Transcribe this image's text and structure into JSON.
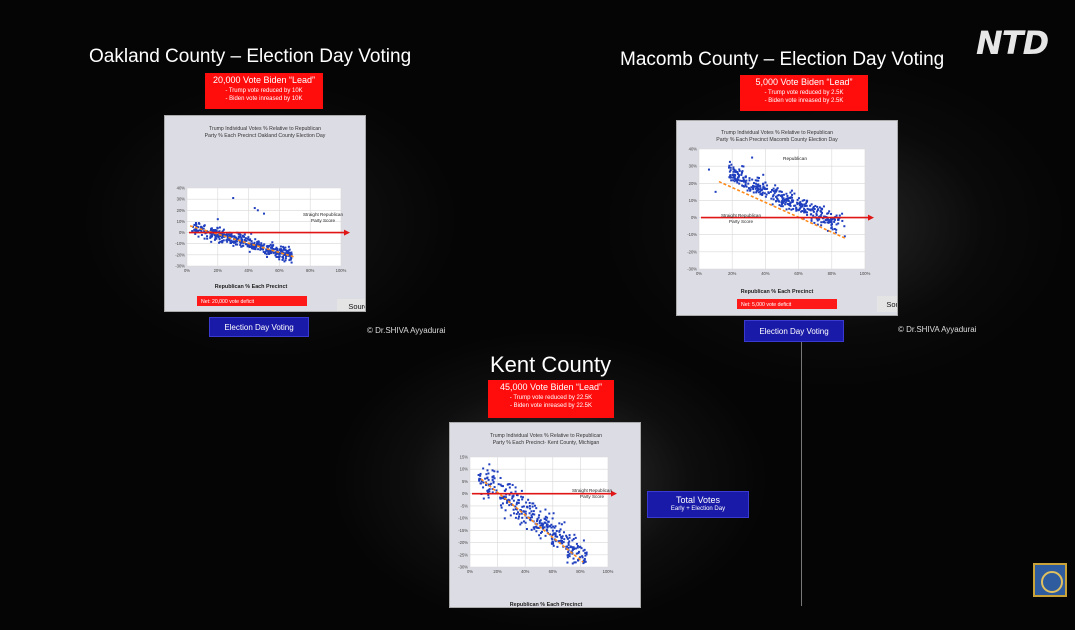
{
  "channel_logo": "NTD",
  "colors": {
    "background": "#050505",
    "red_box": "#ff0d0d",
    "blue_button": "#1a1aa8",
    "point": "#1f3fbf",
    "trend": "#ff8a1a",
    "baseline": "#e01515"
  },
  "charts": [
    {
      "heading": "Oakland County – Election Day Voting",
      "box": {
        "lead": "20,000 Vote Biden “Lead”",
        "line1": "-  Trump vote reduced by 10K",
        "line2": "-  Biden vote inreased by 10K"
      },
      "inner_title": [
        "Trump Individual Votes % Relative to Republican",
        "Party % Each Precinct Oakland County Election Day"
      ],
      "baseline_label": [
        "Straight Republican",
        "Party Score"
      ],
      "net": "Net:    20,000 vote deficit",
      "source": "Source: Phil Evans",
      "button": "Election Day Voting",
      "copyright": "© Dr.SHIVA Ayyadurai"
    },
    {
      "heading": "Macomb County – Election Day Voting",
      "box": {
        "lead": "5,000 Vote Biden “Lead”",
        "line1": "-  Trump vote reduced by 2.5K",
        "line2": "-  Biden vote inreased by 2.5K"
      },
      "inner_title": [
        "Trump Individual Votes % Relative to Republican",
        "Party % Each Precinct Macomb County Election Day"
      ],
      "baseline_label": [
        "Straight Republican",
        "Party Score"
      ],
      "cluster_label": "Republican",
      "net": "Net:    5,000 vote deficit",
      "source": "Source: Phil Evans",
      "button": "Election Day Voting",
      "copyright": "© Dr.SHIVA Ayyadurai"
    },
    {
      "heading": "Kent County",
      "box": {
        "lead": "45,000 Vote Biden “Lead”",
        "line1": "-  Trump vote reduced by 22.5K",
        "line2": "-  Biden vote inreased by 22.5K"
      },
      "inner_title": [
        "Trump Individual Votes % Relative to Republican",
        "Party % Each Precinct- Kent County, Michigan"
      ],
      "baseline_label": [
        "Straight Republican",
        "Party Score"
      ],
      "button_line1": "Total Votes",
      "button_line2": "Early + Election Day"
    }
  ],
  "chart_data": [
    {
      "type": "scatter",
      "title": "Trump Individual Votes % Relative to Republican Party % Each Precinct Oakland County Election Day",
      "xlabel": "Republican % Each Precinct",
      "ylabel": "",
      "xlim": [
        0,
        100
      ],
      "ylim": [
        -30,
        40
      ],
      "xticks": [
        0,
        20,
        40,
        60,
        80,
        100
      ],
      "xtick_labels": [
        "0%",
        "20%",
        "40%",
        "60%",
        "80%",
        "100%"
      ],
      "yticks": [
        40,
        30,
        20,
        10,
        0,
        -10,
        -20,
        -30
      ],
      "ytick_labels": [
        "40%",
        "30%",
        "20%",
        "10%",
        "0%",
        "-10%",
        "-20%",
        "-30%"
      ],
      "trend": {
        "x": [
          2,
          70
        ],
        "y": [
          6,
          -22
        ]
      },
      "baseline": 0,
      "gen": {
        "seed": 11,
        "n": 420,
        "x0": 3,
        "x1": 68,
        "y0": 5,
        "slope": -0.4,
        "sd": 4.5
      },
      "outliers": [
        [
          30,
          31
        ],
        [
          44,
          22
        ],
        [
          46,
          20
        ],
        [
          50,
          17
        ],
        [
          20,
          12
        ]
      ]
    },
    {
      "type": "scatter",
      "title": "Trump Individual Votes % Relative to Republican Party % Each Precinct Macomb County Election Day",
      "xlabel": "Republican % Each Precinct",
      "ylabel": "",
      "xlim": [
        0,
        100
      ],
      "ylim": [
        -30,
        40
      ],
      "xticks": [
        0,
        20,
        40,
        60,
        80,
        100
      ],
      "xtick_labels": [
        "0%",
        "20%",
        "40%",
        "60%",
        "80%",
        "100%"
      ],
      "yticks": [
        40,
        30,
        20,
        10,
        0,
        -10,
        -20,
        -30
      ],
      "ytick_labels": [
        "40%",
        "30%",
        "20%",
        "10%",
        "0%",
        "-10%",
        "-20%",
        "-30%"
      ],
      "trend": {
        "x": [
          12,
          88
        ],
        "y": [
          21,
          -12
        ]
      },
      "baseline": 0,
      "gen": {
        "seed": 23,
        "n": 380,
        "x0": 18,
        "x1": 88,
        "y0": 26,
        "slope": -0.45,
        "sd": 4
      },
      "outliers": [
        [
          6,
          28
        ],
        [
          10,
          15
        ],
        [
          32,
          35
        ],
        [
          26,
          30
        ]
      ]
    },
    {
      "type": "scatter",
      "title": "Trump Individual Votes % Relative to Republican Party % Each Precinct- Kent County, Michigan",
      "xlabel": "Republican % Each Precinct",
      "ylabel": "",
      "xlim": [
        0,
        100
      ],
      "ylim": [
        -30,
        15
      ],
      "xticks": [
        0,
        20,
        40,
        60,
        80,
        100
      ],
      "xtick_labels": [
        "0%",
        "20%",
        "40%",
        "60%",
        "80%",
        "100%"
      ],
      "yticks": [
        15,
        10,
        5,
        0,
        -5,
        -10,
        -15,
        -20,
        -25,
        -30
      ],
      "ytick_labels": [
        "15%",
        "10%",
        "5%",
        "0%",
        "-5%",
        "-10%",
        "-15%",
        "-20%",
        "-25%",
        "-30%"
      ],
      "trend": {
        "x": [
          8,
          82
        ],
        "y": [
          6,
          -28
        ]
      },
      "baseline": 0,
      "gen": {
        "seed": 37,
        "n": 340,
        "x0": 6,
        "x1": 85,
        "y0": 8,
        "slope": -0.44,
        "sd": 4.5
      },
      "outliers": [
        [
          14,
          12
        ],
        [
          10,
          -2
        ],
        [
          20,
          9
        ]
      ]
    }
  ]
}
